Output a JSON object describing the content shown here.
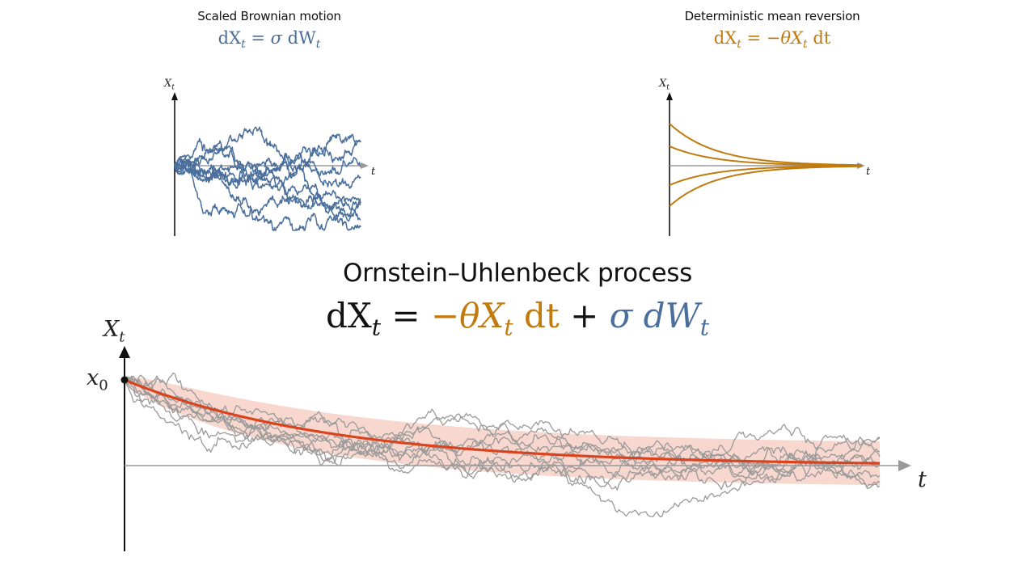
{
  "left_panel": {
    "caption": "Scaled Brownian motion",
    "eq_lhs": "dX",
    "eq_lhs_sub": "t",
    "eq_equals": " = ",
    "eq_rhs_sigma": "σ",
    "eq_rhs_dw": " dW",
    "eq_rhs_sub": "t",
    "y_label": "X",
    "y_label_sub": "t",
    "x_label": "t",
    "color": "#4a6f9c"
  },
  "right_panel": {
    "caption": "Deterministic mean reversion",
    "eq_lhs": "dX",
    "eq_lhs_sub": "t",
    "eq_equals": " = ",
    "eq_rhs_minus": "−θX",
    "eq_rhs_sub": "t",
    "eq_rhs_dt": " dt",
    "y_label": "X",
    "y_label_sub": "t",
    "x_label": "t",
    "color": "#c07a0e"
  },
  "main": {
    "title": "Ornstein–Uhlenbeck process",
    "eq_lhs": "dX",
    "eq_lhs_sub": "t",
    "eq_equals": " = ",
    "eq_drift": "−θX",
    "eq_drift_sub": "t",
    "eq_drift_dt": " dt",
    "eq_plus": " + ",
    "eq_noise": "σ dW",
    "eq_noise_sub": "t",
    "y_label": "X",
    "y_label_sub": "t",
    "x0_label": "x",
    "x0_sub": "0",
    "x_label": "t",
    "mean_color": "#d9431e",
    "band_color": "#f4c9bd",
    "path_color": "#9a9a9a"
  }
}
